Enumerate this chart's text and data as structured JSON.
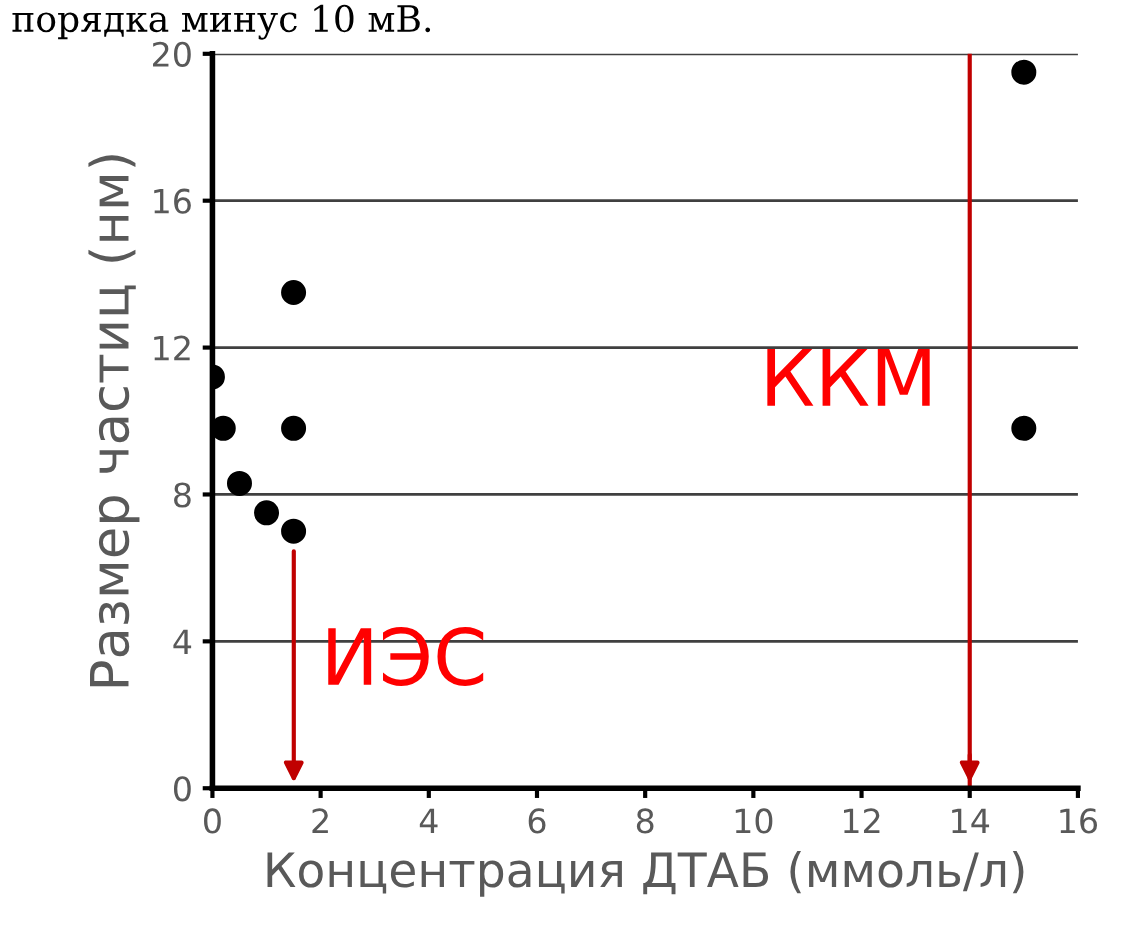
{
  "chart_data": {
    "type": "scatter",
    "xlabel": "Концентрация ДТАБ (ммоль/л)",
    "ylabel": "Размер частиц (нм)",
    "x": [
      0,
      0.2,
      0.5,
      1.0,
      1.5,
      1.5,
      1.5,
      15,
      15
    ],
    "series": [
      {
        "color": "#000000",
        "values": [
          11.2,
          9.8,
          8.3,
          7.5,
          7.0,
          9.8,
          13.5,
          19.5,
          9.8
        ]
      }
    ],
    "xlim": [
      0,
      16
    ],
    "xticks": [
      0,
      2,
      4,
      6,
      8,
      10,
      12,
      14,
      16
    ],
    "ylim": [
      0,
      20
    ],
    "yticks": [
      0,
      4,
      8,
      12,
      16,
      20
    ],
    "grid": "y",
    "marker": "circle",
    "ref_lines": [
      {
        "axis": "x",
        "value": 14,
        "label": "ККМ",
        "color": "#c00000"
      }
    ],
    "annotations": [
      "порядка минус 10 мВ.",
      "ИЭС"
    ]
  }
}
